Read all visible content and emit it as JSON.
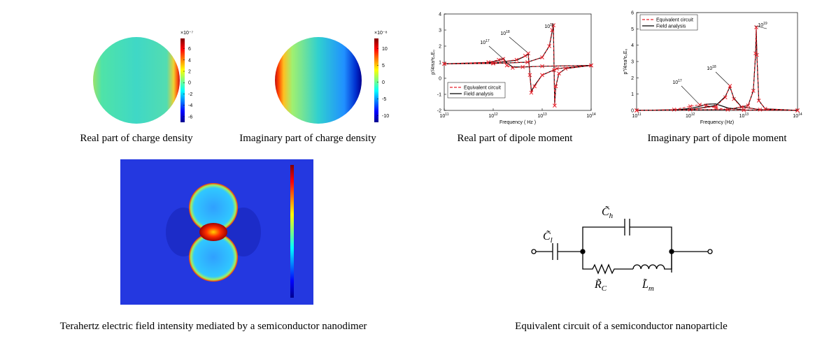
{
  "panels": {
    "charge_real": {
      "caption": "Real part of charge density",
      "multiplier": "×10⁻⁷",
      "clim": [
        -7,
        7.8
      ],
      "ticks": [
        6,
        4,
        2,
        0,
        -2,
        -4,
        -6
      ]
    },
    "charge_imag": {
      "caption": "Imaginary part of charge density",
      "multiplier": "×10⁻⁸",
      "clim": [
        -12,
        13
      ],
      "ticks": [
        10,
        5,
        0,
        -5,
        -10
      ]
    },
    "dipole_real": {
      "caption": "Real part of dipole moment"
    },
    "dipole_imag": {
      "caption": "Imaginary part of dipole moment"
    },
    "field": {
      "caption": "Terahertz electric field intensity mediated by a semiconductor nanodimer"
    },
    "circuit": {
      "caption": "Equivalent circuit of a semiconductor nanoparticle",
      "labels": [
        {
          "symbol": "C̃",
          "sub": "l"
        },
        {
          "symbol": "C̃",
          "sub": "h"
        },
        {
          "symbol": "R̃",
          "sub": "C"
        },
        {
          "symbol": "L̃",
          "sub": "m"
        }
      ]
    }
  },
  "chart_data": [
    {
      "type": "line",
      "xlabel": "Frequency ( Hz )",
      "ylabel": "p′/4πa³ε₀E₀",
      "log_x": true,
      "legend": "lower left",
      "legend_entries": [
        {
          "name": "Equivalent circuit",
          "color": "#e8202a"
        },
        {
          "name": "Field analysis",
          "color": "#000000"
        }
      ],
      "xlim": [
        100000000000.0,
        100000000000000.0
      ],
      "ylim": [
        -2,
        4
      ],
      "xticks": [
        {
          "value": 100000000000.0,
          "label": "10",
          "exp": "11"
        },
        {
          "value": 1000000000000.0,
          "label": "10",
          "exp": "12"
        },
        {
          "value": 10000000000000.0,
          "label": "10",
          "exp": "13"
        },
        {
          "value": 100000000000000.0,
          "label": "10",
          "exp": "14"
        }
      ],
      "yticks": [
        -2,
        -1,
        0,
        1,
        2,
        3,
        4
      ],
      "curves": [
        {
          "annotation": {
            "base": "10",
            "exp": "17"
          },
          "x": [
            100000000000.0,
            800000000000.0,
            1300000000000.0,
            1600000000000.0,
            1900000000000.0,
            2500000000000.0,
            4000000000000.0,
            10000000000000.0,
            100000000000000.0
          ],
          "circuit": [
            0.9,
            1.0,
            1.15,
            1.2,
            0.8,
            0.65,
            0.7,
            0.75,
            0.8
          ],
          "field": [
            0.9,
            0.98,
            1.1,
            1.25,
            0.95,
            0.7,
            0.7,
            0.75,
            0.8
          ]
        },
        {
          "annotation": {
            "base": "10",
            "exp": "18"
          },
          "x": [
            100000000000.0,
            1000000000000.0,
            3000000000000.0,
            4500000000000.0,
            5200000000000.0,
            5600000000000.0,
            6000000000000.0,
            7000000000000.0,
            10000000000000.0,
            20000000000000.0,
            100000000000000.0
          ],
          "circuit": [
            0.9,
            0.95,
            1.15,
            1.4,
            1.55,
            0.2,
            -0.9,
            -0.5,
            0.2,
            0.6,
            0.8
          ],
          "field": [
            0.9,
            0.95,
            1.12,
            1.38,
            1.5,
            0.3,
            -0.8,
            -0.45,
            0.2,
            0.6,
            0.8
          ]
        },
        {
          "annotation": {
            "base": "10",
            "exp": "19"
          },
          "x": [
            100000000000.0,
            1000000000000.0,
            5000000000000.0,
            10000000000000.0,
            14000000000000.0,
            16000000000000.0,
            17000000000000.0,
            17500000000000.0,
            18000000000000.0,
            19000000000000.0,
            22000000000000.0,
            30000000000000.0,
            100000000000000.0
          ],
          "circuit": [
            0.9,
            0.92,
            1.0,
            1.3,
            2.0,
            3.0,
            3.3,
            0.5,
            -1.7,
            -0.5,
            0.3,
            0.6,
            0.8
          ],
          "field": [
            0.9,
            0.92,
            1.0,
            1.3,
            2.0,
            2.9,
            3.2,
            0.6,
            -1.6,
            -0.5,
            0.3,
            0.6,
            0.8
          ]
        }
      ]
    },
    {
      "type": "line",
      "xlabel": "Frequency (Hz)",
      "ylabel": "p″/4πa³ε₀E₀",
      "log_x": true,
      "legend": "upper left",
      "legend_entries": [
        {
          "name": "Equivalent circuit",
          "color": "#e8202a"
        },
        {
          "name": "Field analysis",
          "color": "#000000"
        }
      ],
      "xlim": [
        100000000000.0,
        100000000000000.0
      ],
      "ylim": [
        0,
        6
      ],
      "xticks": [
        {
          "value": 100000000000.0,
          "label": "10",
          "exp": "11"
        },
        {
          "value": 1000000000000.0,
          "label": "10",
          "exp": "12"
        },
        {
          "value": 10000000000000.0,
          "label": "10",
          "exp": "13"
        },
        {
          "value": 100000000000000.0,
          "label": "10",
          "exp": "14"
        }
      ],
      "yticks": [
        0,
        1,
        2,
        3,
        4,
        5,
        6
      ],
      "curves": [
        {
          "annotation": {
            "base": "10",
            "exp": "17"
          },
          "x": [
            100000000000.0,
            500000000000.0,
            1000000000000.0,
            1500000000000.0,
            2000000000000.0,
            3000000000000.0,
            5000000000000.0,
            10000000000000.0,
            100000000000000.0
          ],
          "circuit": [
            0,
            0.05,
            0.25,
            0.35,
            0.3,
            0.15,
            0.05,
            0.02,
            0
          ],
          "field": [
            0,
            0.03,
            0.12,
            0.25,
            0.38,
            0.4,
            0.15,
            0.03,
            0
          ]
        },
        {
          "annotation": {
            "base": "10",
            "exp": "18"
          },
          "x": [
            100000000000.0,
            1000000000000.0,
            3000000000000.0,
            4500000000000.0,
            5500000000000.0,
            6500000000000.0,
            9000000000000.0,
            20000000000000.0,
            100000000000000.0
          ],
          "circuit": [
            0,
            0.05,
            0.25,
            0.8,
            1.5,
            0.7,
            0.2,
            0.05,
            0
          ],
          "field": [
            0,
            0.05,
            0.3,
            0.85,
            1.45,
            0.75,
            0.22,
            0.05,
            0
          ]
        },
        {
          "annotation": {
            "base": "10",
            "exp": "19"
          },
          "x": [
            100000000000.0,
            5000000000000.0,
            12000000000000.0,
            15000000000000.0,
            16500000000000.0,
            17000000000000.0,
            17500000000000.0,
            19000000000000.0,
            25000000000000.0,
            100000000000000.0
          ],
          "circuit": [
            0,
            0.05,
            0.3,
            1.2,
            3.5,
            5.1,
            3.4,
            0.6,
            0.1,
            0
          ],
          "field": [
            0,
            0.05,
            0.3,
            1.2,
            3.4,
            5.0,
            3.3,
            0.6,
            0.1,
            0
          ]
        }
      ]
    }
  ]
}
